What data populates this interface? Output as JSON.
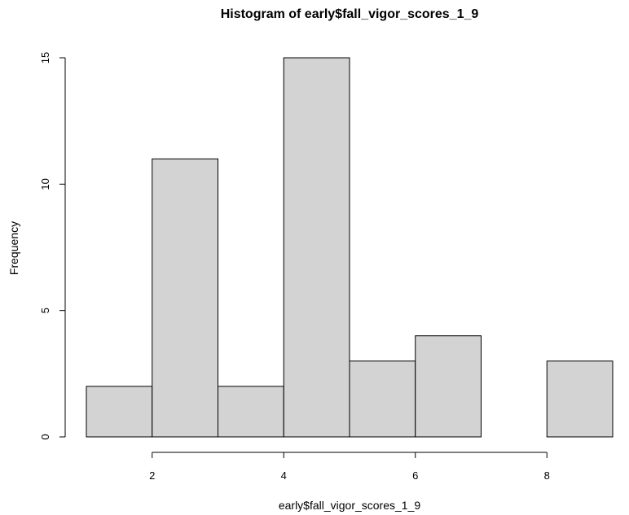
{
  "chart_data": {
    "type": "bar",
    "title": "Histogram of early$fall_vigor_scores_1_9",
    "xlabel": "early$fall_vigor_scores_1_9",
    "ylabel": "Frequency",
    "bins": [
      [
        1,
        2
      ],
      [
        2,
        3
      ],
      [
        3,
        4
      ],
      [
        4,
        5
      ],
      [
        5,
        6
      ],
      [
        6,
        7
      ],
      [
        7,
        8
      ],
      [
        8,
        9
      ]
    ],
    "values": [
      2,
      11,
      2,
      15,
      3,
      4,
      0,
      3
    ],
    "xlim": [
      1,
      9
    ],
    "ylim": [
      0,
      15
    ],
    "x_ticks": [
      2,
      4,
      6,
      8
    ],
    "y_ticks": [
      0,
      5,
      10,
      15
    ],
    "bar_color": "#d3d3d3",
    "grid": false,
    "legend": "none"
  }
}
